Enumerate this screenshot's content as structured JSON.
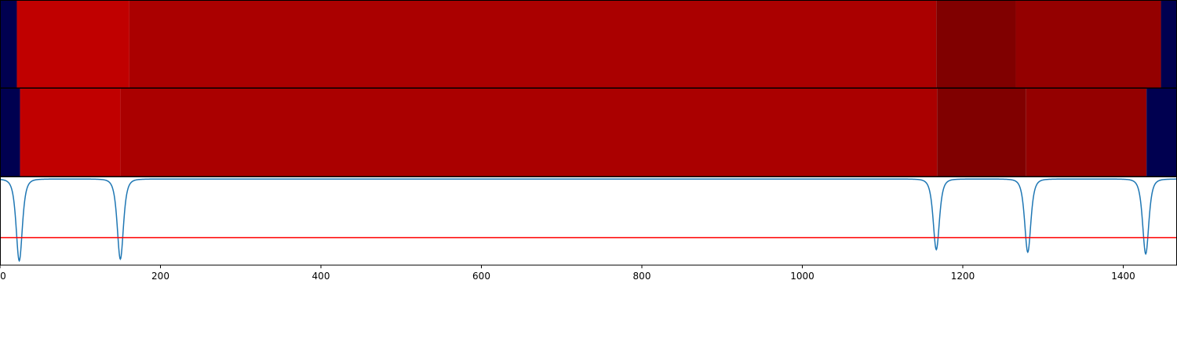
{
  "chart_data": {
    "type": "heatmap",
    "xlim": [
      0,
      1467
    ],
    "x_ticks": [
      0,
      200,
      400,
      600,
      800,
      1000,
      1200,
      1400
    ],
    "x_tick_labels": [
      "0",
      "200",
      "400",
      "600",
      "800",
      "1000",
      "1200",
      "1400"
    ],
    "grid": false,
    "legend": "none",
    "colors": {
      "segment_background": "#000050",
      "heat_bright": "#c00000",
      "heat_mid": "#aa0000",
      "heat_dark": "#800000",
      "heat_mid_dark": "#940000",
      "signal_line": "#1f77b4",
      "threshold_line": "#ff0000",
      "axis": "#000000"
    },
    "segment_rows": [
      {
        "segments": [
          {
            "start": 0,
            "end": 21,
            "color": "#000050"
          },
          {
            "start": 21,
            "end": 161,
            "color": "#c00000"
          },
          {
            "start": 161,
            "end": 1167,
            "color": "#aa0000"
          },
          {
            "start": 1167,
            "end": 1266,
            "color": "#800000"
          },
          {
            "start": 1266,
            "end": 1447,
            "color": "#940000"
          },
          {
            "start": 1447,
            "end": 1467,
            "color": "#000050"
          }
        ]
      },
      {
        "segments": [
          {
            "start": 0,
            "end": 25,
            "color": "#000050"
          },
          {
            "start": 25,
            "end": 150,
            "color": "#c00000"
          },
          {
            "start": 150,
            "end": 1168,
            "color": "#aa0000"
          },
          {
            "start": 1168,
            "end": 1279,
            "color": "#800000"
          },
          {
            "start": 1279,
            "end": 1429,
            "color": "#940000"
          },
          {
            "start": 1429,
            "end": 1467,
            "color": "#000050"
          }
        ]
      }
    ],
    "signal": {
      "baseline": 0,
      "ylim": [
        -1.0,
        0.02
      ],
      "threshold": -0.68,
      "dips": [
        {
          "center": 24,
          "depth": 0.95,
          "width": 6
        },
        {
          "center": 150,
          "depth": 0.93,
          "width": 6
        },
        {
          "center": 1167,
          "depth": 0.82,
          "width": 6
        },
        {
          "center": 1281,
          "depth": 0.85,
          "width": 6
        },
        {
          "center": 1428,
          "depth": 0.87,
          "width": 6
        }
      ]
    }
  }
}
